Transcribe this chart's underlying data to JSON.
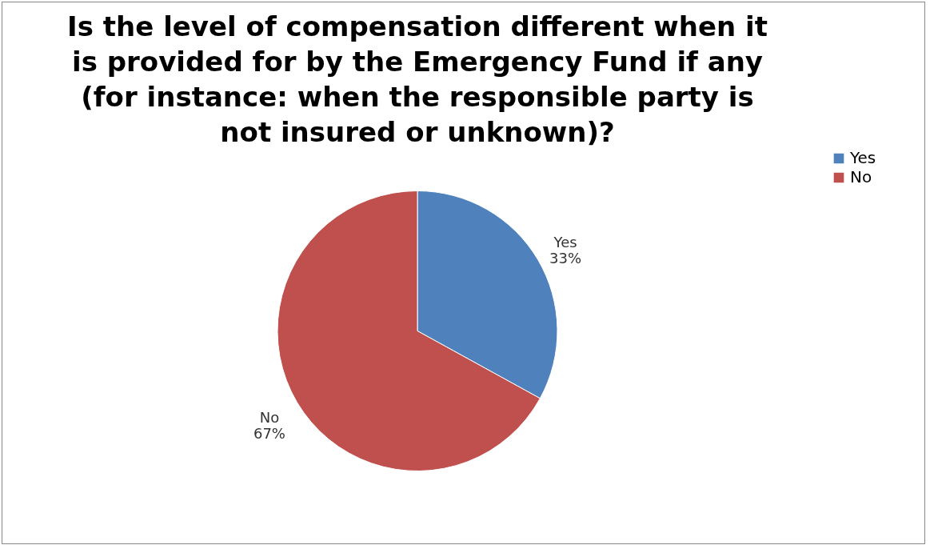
{
  "chart_data": {
    "type": "pie",
    "title": "Is the level of compensation different when it is provided for by the Emergency Fund if any (for instance:  when the responsible party is not insured or unknown)?",
    "categories": [
      "Yes",
      "No"
    ],
    "values": [
      33,
      67
    ],
    "value_labels": [
      "33%",
      "67%"
    ],
    "colors": [
      "#4f81bd",
      "#c0504d"
    ],
    "legend": "right"
  }
}
